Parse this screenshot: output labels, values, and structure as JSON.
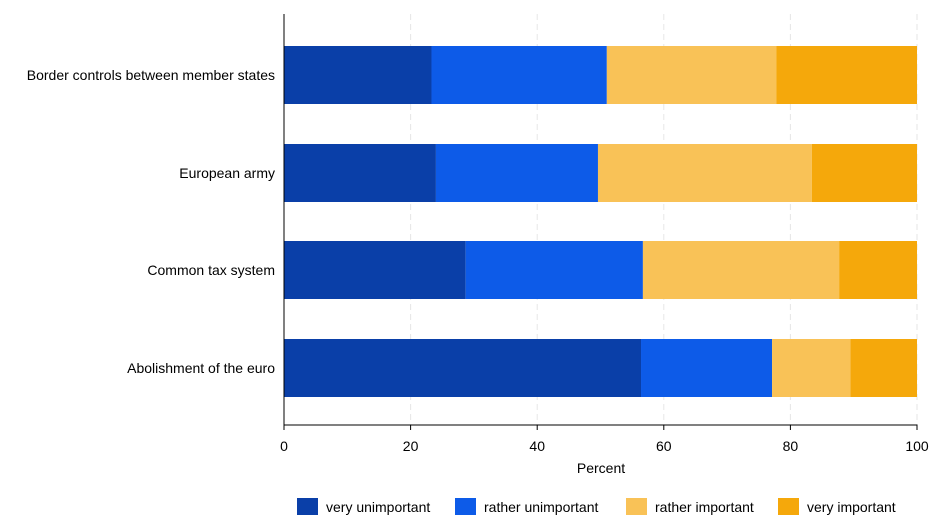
{
  "chart_data": {
    "type": "bar",
    "orientation": "horizontal",
    "stacked": true,
    "xlabel": "Percent",
    "xlim": [
      0,
      100
    ],
    "xticks": [
      0,
      20,
      40,
      60,
      80,
      100
    ],
    "grid": "vertical dashed",
    "legend_position": "bottom",
    "categories": [
      "Border controls between member states",
      "European army",
      "Common tax system",
      "Abolishment of the euro"
    ],
    "series": [
      {
        "name": "very unimportant",
        "color": "#0a3fa8",
        "values": [
          23.3,
          24.0,
          28.7,
          56.4
        ]
      },
      {
        "name": "rather unimportant",
        "color": "#0d5be8",
        "values": [
          27.7,
          25.6,
          28.0,
          20.7
        ]
      },
      {
        "name": "rather important",
        "color": "#f9c257",
        "values": [
          26.8,
          33.8,
          31.0,
          12.4
        ]
      },
      {
        "name": "very important",
        "color": "#f5a80b",
        "values": [
          22.2,
          16.6,
          12.3,
          10.5
        ]
      }
    ]
  }
}
